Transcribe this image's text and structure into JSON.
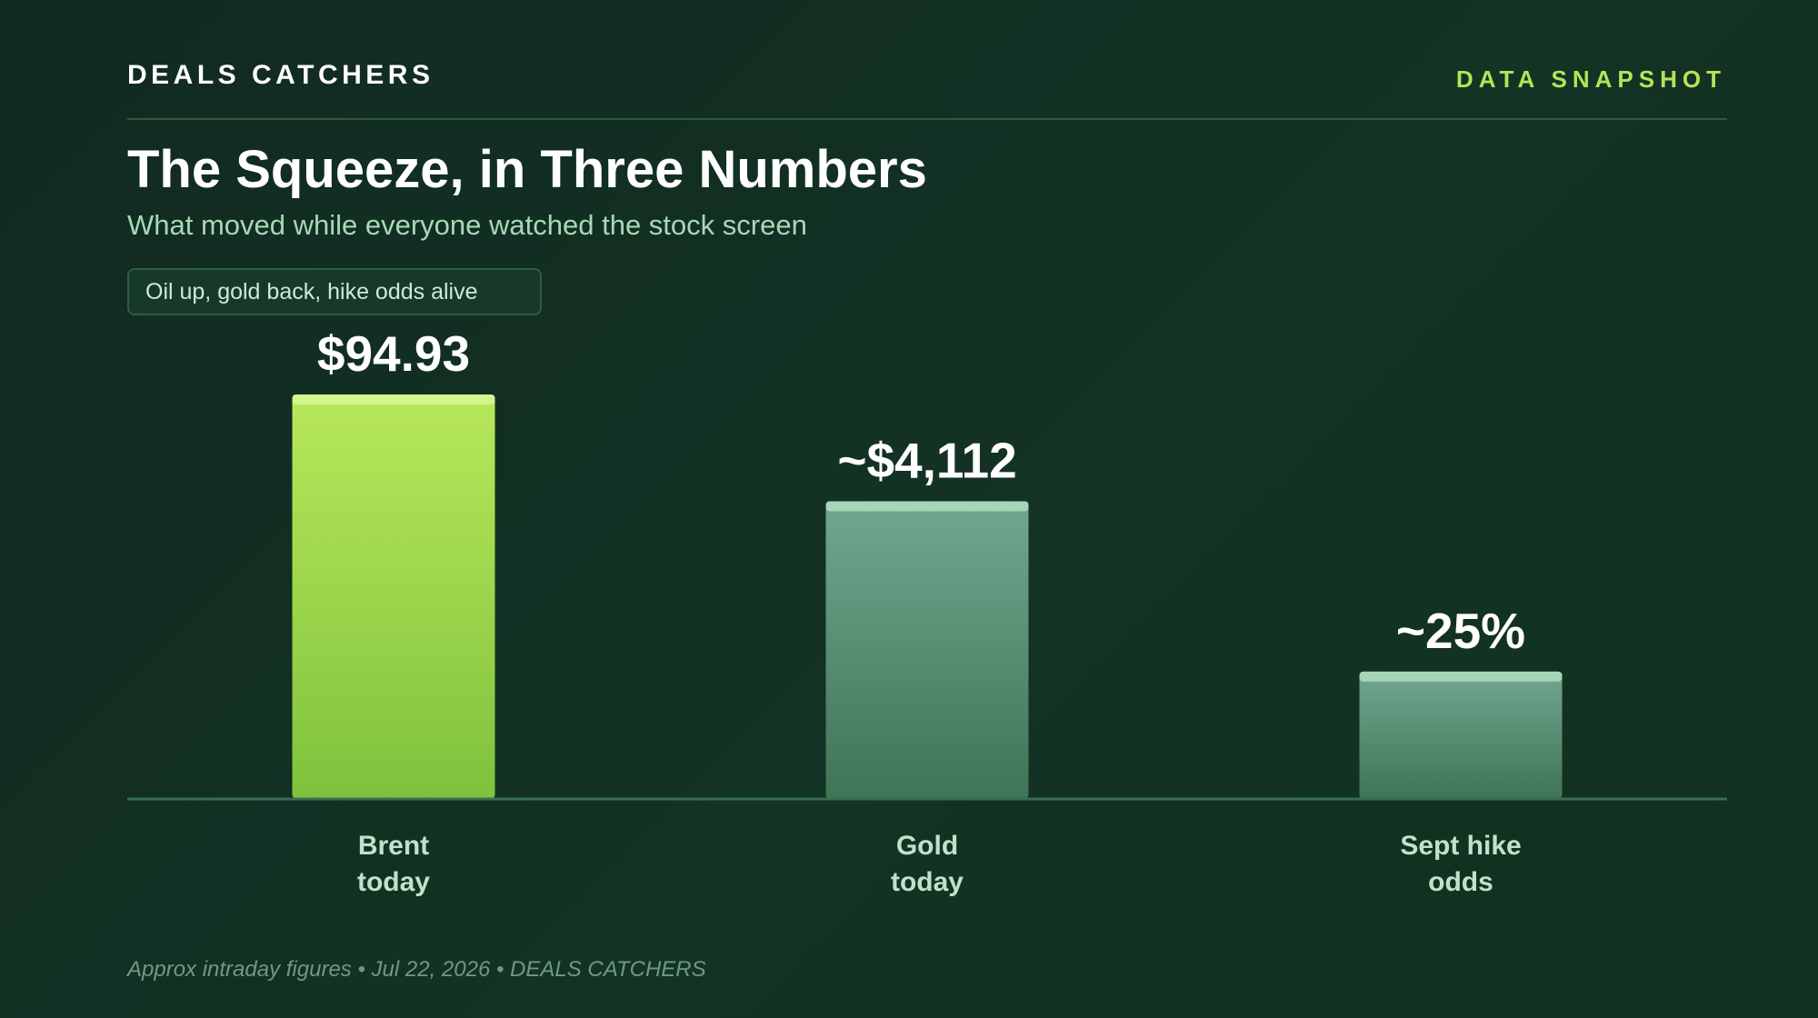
{
  "header": {
    "brand": "DEALS CATCHERS",
    "tag": "DATA SNAPSHOT"
  },
  "title": "The Squeeze, in Three Numbers",
  "subtitle": "What moved while everyone watched the stock screen",
  "pill": "Oil up, gold back, hike odds alive",
  "footnote": "Approx intraday figures • Jul 22, 2026 • DEALS CATCHERS",
  "colors": {
    "background": "#12301f",
    "accent_lime": "#b5e356",
    "bar_primary_top": "#b8e85a",
    "bar_primary_bottom": "#7fc23d",
    "bar_secondary_top": "#72a690",
    "bar_secondary_bottom": "#3f7456",
    "label_green": "#a8d8b6"
  },
  "chart_data": {
    "type": "bar",
    "categories": [
      [
        "Brent",
        "today"
      ],
      [
        "Gold",
        "today"
      ],
      [
        "Sept hike",
        "odds"
      ]
    ],
    "values": [
      100,
      73.6,
      31.5
    ],
    "value_labels": [
      "$94.93",
      "~$4,112",
      "~25%"
    ],
    "value_note": "values are relative bar heights (tallest = 100); the bars encode figures with different units",
    "highlight": [
      true,
      false,
      false
    ],
    "ylim": [
      0,
      100
    ],
    "grid": false,
    "legend": "none"
  }
}
